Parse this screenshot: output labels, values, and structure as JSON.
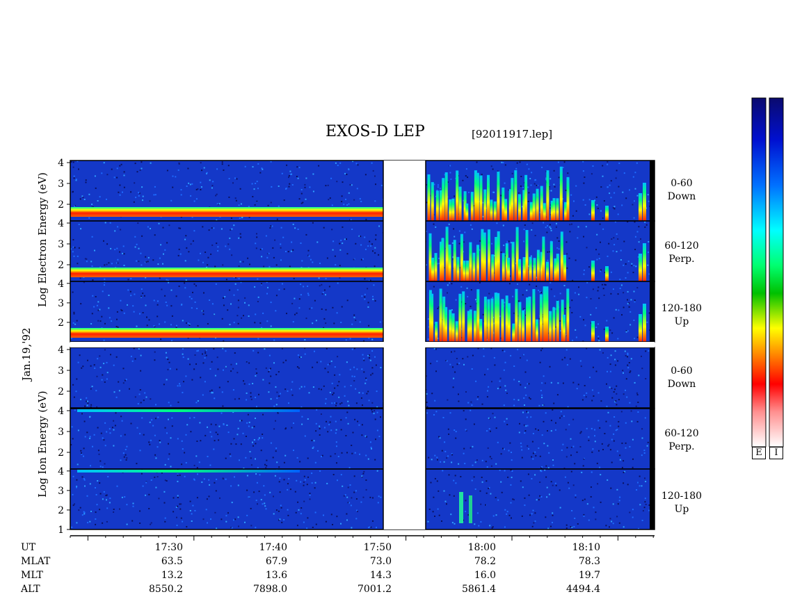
{
  "header": {
    "title": "EXOS-D LEP",
    "filename": "[92011917.lep]"
  },
  "axes_labels": {
    "date": "Jan.19,'92",
    "electron_ylabel": "Log   Electron   Energy  (eV)",
    "ion_ylabel": "Log    Ion   Energy  (eV)"
  },
  "pitch_angle_labels": [
    {
      "range": "0-60",
      "dir": "Down"
    },
    {
      "range": "60-120",
      "dir": "Perp."
    },
    {
      "range": "120-180",
      "dir": "Up"
    },
    {
      "range": "0-60",
      "dir": "Down"
    },
    {
      "range": "60-120",
      "dir": "Perp."
    },
    {
      "range": "120-180",
      "dir": "Up"
    }
  ],
  "ephemeris": {
    "row_labels": [
      "UT",
      "MLAT",
      "MLT",
      "ALT"
    ],
    "columns": [
      {
        "UT": "17:30",
        "MLAT": "63.5",
        "MLT": "13.2",
        "ALT": "8550.2"
      },
      {
        "UT": "17:40",
        "MLAT": "67.9",
        "MLT": "13.6",
        "ALT": "7898.0"
      },
      {
        "UT": "17:50",
        "MLAT": "73.0",
        "MLT": "14.3",
        "ALT": "7001.2"
      },
      {
        "UT": "18:00",
        "MLAT": "78.2",
        "MLT": "16.0",
        "ALT": "5861.4"
      },
      {
        "UT": "18:10",
        "MLAT": "78.3",
        "MLT": "19.7",
        "ALT": "4494.4"
      }
    ]
  },
  "colorbar": {
    "labels": [
      "E",
      "I"
    ],
    "stops": [
      "#0a0a6e",
      "#0000ff",
      "#0080ff",
      "#00ffff",
      "#00ff60",
      "#00c000",
      "#ffff00",
      "#ff8000",
      "#ff0000",
      "#ff9090",
      "#ffffff"
    ]
  },
  "chart_data": {
    "type": "heatmap",
    "title": "EXOS-D LEP",
    "x_ticks": [
      "17:30",
      "17:40",
      "17:50",
      "18:00",
      "18:10"
    ],
    "y_ticks": [
      "1",
      "2",
      "3",
      "4"
    ],
    "data_gap": {
      "from": "17:50",
      "to": "17:54"
    },
    "panels": [
      {
        "species": "Electron",
        "range": "0-60",
        "dir": "Down",
        "y_ticks": [
          "2",
          "3",
          "4"
        ],
        "ylim": [
          1.2,
          4.1
        ]
      },
      {
        "species": "Electron",
        "range": "60-120",
        "dir": "Perp.",
        "y_ticks": [
          "2",
          "3",
          "4"
        ],
        "ylim": [
          1.2,
          4.1
        ]
      },
      {
        "species": "Electron",
        "range": "120-180",
        "dir": "Up",
        "y_ticks": [
          "2",
          "3",
          "4"
        ],
        "ylim": [
          1.0,
          4.1
        ]
      },
      {
        "species": "Ion",
        "range": "0-60",
        "dir": "Down",
        "y_ticks": [
          "2",
          "3",
          "4"
        ],
        "ylim": [
          1.2,
          4.1
        ]
      },
      {
        "species": "Ion",
        "range": "60-120",
        "dir": "Perp.",
        "y_ticks": [
          "2",
          "3",
          "4"
        ],
        "ylim": [
          1.2,
          4.1
        ]
      },
      {
        "species": "Ion",
        "range": "120-180",
        "dir": "Up",
        "y_ticks": [
          "1",
          "2",
          "3",
          "4"
        ],
        "ylim": [
          1.0,
          4.1
        ]
      }
    ],
    "colors": {
      "background": "#1030c0",
      "high": "#ff0000",
      "mid": "#00ff00",
      "low": "#0000ff"
    }
  }
}
